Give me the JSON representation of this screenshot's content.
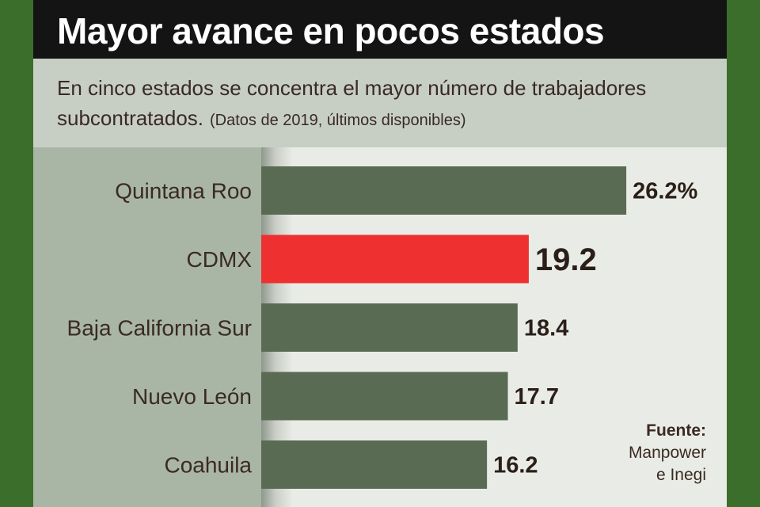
{
  "header": {
    "title": "Mayor avance en pocos estados",
    "subtitle": "En cinco estados se concentra el mayor número de trabajadores subcontratados.",
    "note": "(Datos de 2019, últimos disponibles)"
  },
  "source": {
    "title": "Fuente:",
    "line1": "Manpower",
    "line2": "e Inegi"
  },
  "colors": {
    "bar": "#5a6b54",
    "highlight": "#ee3030",
    "title_bg": "#141414",
    "outer_bg": "#3b6e2b"
  },
  "chart_data": {
    "type": "bar",
    "orientation": "horizontal",
    "title": "Mayor avance en pocos estados",
    "categories": [
      "Quintana Roo",
      "CDMX",
      "Baja California Sur",
      "Nuevo León",
      "Coahuila"
    ],
    "values": [
      26.2,
      19.2,
      18.4,
      17.7,
      16.2
    ],
    "value_labels": [
      "26.2%",
      "19.2",
      "18.4",
      "17.7",
      "16.2"
    ],
    "highlight": "CDMX",
    "unit": "%",
    "xlabel": "",
    "ylabel": ""
  }
}
